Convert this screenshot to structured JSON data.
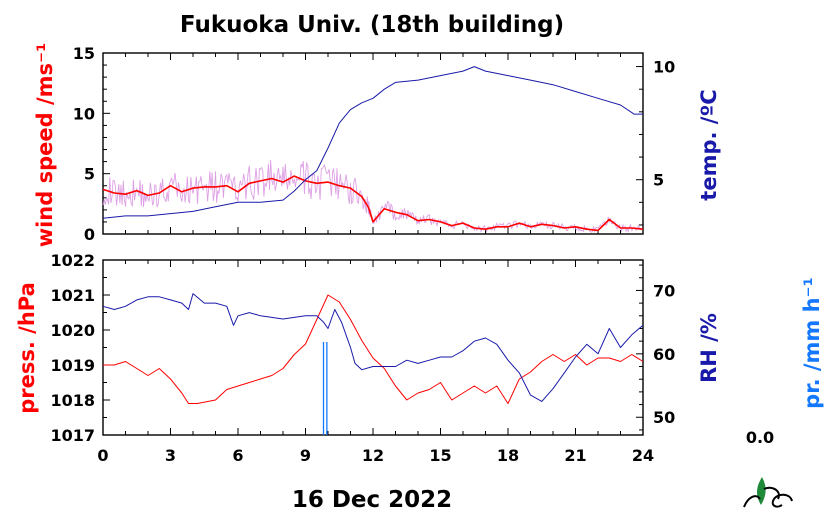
{
  "title": "Fukuoka Univ. (18th building)",
  "date_label": "16 Dec 2022",
  "precip_total": "0.0",
  "colors": {
    "wind": "#ff0000",
    "wind_raw": "#d890e0",
    "temp": "#1a1aaa",
    "pressure": "#ff0000",
    "rh": "#1a1aaa",
    "precip": "#1478ff",
    "logo": "#1f8a3a"
  },
  "chart_data": [
    {
      "type": "line",
      "panel": "top",
      "xlim": [
        0,
        24
      ],
      "x_ticks": [
        "0",
        "3",
        "6",
        "9",
        "12",
        "15",
        "18",
        "21",
        "24"
      ],
      "y_left": {
        "label": "wind speed /ms⁻¹",
        "lim": [
          0,
          15
        ],
        "ticks": [
          "0",
          "5",
          "10",
          "15"
        ]
      },
      "y_right": {
        "label": "temp. /ºC",
        "lim": [
          2.6,
          10.6
        ],
        "ticks": [
          "5",
          "10"
        ]
      },
      "series": [
        {
          "axis": "left",
          "kind": "wind_smooth",
          "x": [
            0,
            0.5,
            1,
            1.5,
            2,
            2.5,
            3,
            3.5,
            4,
            4.5,
            5,
            5.5,
            6,
            6.5,
            7,
            7.5,
            8,
            8.5,
            9,
            9.5,
            10,
            10.5,
            11,
            11.5,
            11.8,
            12,
            12.5,
            13,
            13.5,
            14,
            14.5,
            15,
            15.5,
            16,
            16.5,
            17,
            17.5,
            18,
            18.5,
            19,
            19.5,
            20,
            20.5,
            21,
            21.5,
            22,
            22.5,
            23,
            23.5,
            24
          ],
          "values": [
            3.7,
            3.4,
            3.3,
            3.6,
            3.2,
            3.4,
            4.0,
            3.5,
            3.8,
            3.9,
            3.9,
            4.0,
            3.5,
            4.2,
            4.4,
            4.6,
            4.3,
            4.8,
            4.4,
            4.2,
            4.3,
            4.0,
            3.8,
            3.1,
            2.2,
            1.0,
            2.1,
            1.8,
            1.6,
            1.1,
            1.2,
            1.0,
            0.7,
            0.9,
            0.5,
            0.4,
            0.6,
            0.6,
            0.9,
            0.6,
            0.8,
            0.7,
            0.5,
            0.6,
            0.4,
            0.3,
            1.2,
            0.5,
            0.5,
            0.4
          ]
        },
        {
          "axis": "right",
          "kind": "temp",
          "x": [
            0,
            1,
            2,
            3,
            4,
            5,
            6,
            7,
            8,
            8.5,
            9,
            9.5,
            10,
            10.5,
            11,
            11.5,
            12,
            12.5,
            13,
            14,
            15,
            16,
            16.5,
            17,
            18,
            19,
            20,
            21,
            22,
            23,
            23.6,
            24
          ],
          "values": [
            3.3,
            3.4,
            3.4,
            3.5,
            3.6,
            3.8,
            4.0,
            4.0,
            4.1,
            4.5,
            5.0,
            5.4,
            6.4,
            7.5,
            8.1,
            8.4,
            8.6,
            9.0,
            9.3,
            9.4,
            9.6,
            9.8,
            10.0,
            9.8,
            9.6,
            9.4,
            9.2,
            8.9,
            8.6,
            8.3,
            7.9,
            7.9
          ]
        }
      ]
    },
    {
      "type": "line",
      "panel": "bottom",
      "xlim": [
        0,
        24
      ],
      "x_ticks": [
        "0",
        "3",
        "6",
        "9",
        "12",
        "15",
        "18",
        "21",
        "24"
      ],
      "y_left": {
        "label": "press. /hPa",
        "lim": [
          1017,
          1022
        ],
        "ticks": [
          "1017",
          "1018",
          "1019",
          "1020",
          "1021",
          "1022"
        ]
      },
      "y_right": {
        "label": "RH /%",
        "lim": [
          47.2,
          74.8
        ],
        "ticks": [
          "50",
          "60",
          "70"
        ]
      },
      "y_precip": {
        "label": "pr. /mm h⁻¹"
      },
      "series": [
        {
          "axis": "left",
          "kind": "pressure",
          "x": [
            0,
            0.5,
            1,
            1.5,
            2,
            2.5,
            3,
            3.5,
            3.8,
            4.2,
            5,
            5.5,
            6,
            6.5,
            7,
            7.5,
            8,
            8.5,
            9,
            9.5,
            10,
            10.5,
            11,
            11.5,
            12,
            12.5,
            13,
            13.5,
            14,
            14.5,
            15,
            15.5,
            16,
            16.5,
            17,
            17.5,
            18,
            18.5,
            19,
            19.5,
            20,
            20.5,
            21,
            21.5,
            22,
            22.5,
            23,
            23.5,
            24
          ],
          "values": [
            1019.0,
            1019.0,
            1019.1,
            1018.9,
            1018.7,
            1018.9,
            1018.6,
            1018.2,
            1017.9,
            1017.9,
            1018.0,
            1018.3,
            1018.4,
            1018.5,
            1018.6,
            1018.7,
            1018.9,
            1019.3,
            1019.6,
            1020.3,
            1021.0,
            1020.8,
            1020.3,
            1019.7,
            1019.2,
            1018.9,
            1018.4,
            1018.0,
            1018.2,
            1018.3,
            1018.5,
            1018.0,
            1018.2,
            1018.4,
            1018.2,
            1018.4,
            1017.9,
            1018.6,
            1018.8,
            1019.1,
            1019.3,
            1019.1,
            1019.3,
            1019.0,
            1019.2,
            1019.2,
            1019.1,
            1019.3,
            1019.1
          ]
        },
        {
          "axis": "right",
          "kind": "rh",
          "x": [
            0,
            0.5,
            1,
            1.5,
            2,
            2.5,
            3,
            3.5,
            3.8,
            4,
            4.5,
            5,
            5.5,
            5.8,
            6,
            6.5,
            7,
            8,
            9,
            9.5,
            9.8,
            10,
            10.3,
            10.6,
            11,
            11.2,
            11.5,
            12,
            12.5,
            13,
            13.5,
            14,
            14.5,
            15,
            15.5,
            16,
            16.5,
            17,
            17.5,
            18,
            18.5,
            19,
            19.5,
            20,
            20.5,
            21,
            21.5,
            22,
            22.5,
            23,
            23.5,
            24
          ],
          "values": [
            67.5,
            67.0,
            67.5,
            68.5,
            69.0,
            69.0,
            68.5,
            68.0,
            67.0,
            69.5,
            68.0,
            68.0,
            67.5,
            64.5,
            66.0,
            66.5,
            66.0,
            65.5,
            66.0,
            66.0,
            65.0,
            64.0,
            67.0,
            65.0,
            61.0,
            58.5,
            57.5,
            58.0,
            58.0,
            58.0,
            59.0,
            58.5,
            59.0,
            59.5,
            59.5,
            60.5,
            62.0,
            62.5,
            61.5,
            59.0,
            57.0,
            53.5,
            52.5,
            54.5,
            57.0,
            59.5,
            61.5,
            60.0,
            64.0,
            61.0,
            63.0,
            64.5
          ]
        },
        {
          "axis": "precip",
          "kind": "precip",
          "x": [
            9.8,
            9.95
          ],
          "values": [
            0,
            0
          ]
        }
      ]
    }
  ]
}
